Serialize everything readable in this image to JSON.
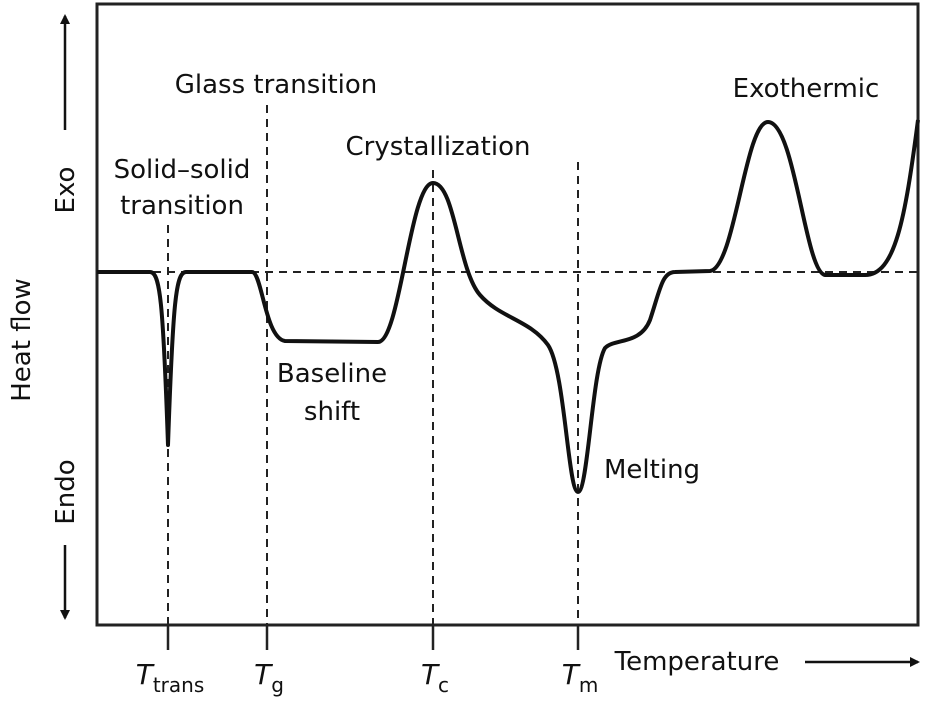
{
  "annotations": {
    "solid_solid": [
      "Solid–solid",
      "transition"
    ],
    "glass": "Glass transition",
    "crystallization": "Crystallization",
    "exothermic": "Exothermic",
    "baseline_shift": [
      "Baseline",
      "shift"
    ],
    "melting": "Melting"
  },
  "y_axis": {
    "title": "Heat flow",
    "up": "Exo",
    "down": "Endo"
  },
  "x_axis": {
    "title": "Temperature",
    "ticks": [
      {
        "main": "T",
        "sub": "trans"
      },
      {
        "main": "T",
        "sub": "g"
      },
      {
        "main": "T",
        "sub": "c"
      },
      {
        "main": "T",
        "sub": "m"
      }
    ]
  }
}
